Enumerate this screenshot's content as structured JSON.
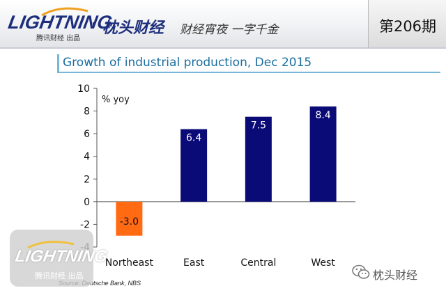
{
  "header": {
    "logo": "LIGHTNING",
    "logo_sub": "腾讯财经 出品",
    "separator": "·",
    "brand": "枕头财经",
    "slogan": "财经宵夜 一字千金",
    "issue": "第206期"
  },
  "colors": {
    "negative_bar": "#ff6a13",
    "positive_bar": "#0b0b78",
    "accent": "#7ab6d8",
    "title": "#1a6ea0"
  },
  "chart_data": {
    "type": "bar",
    "title": "Growth of industrial production, Dec 2015",
    "unit_label": "% yoy",
    "categories": [
      "Northeast",
      "East",
      "Central",
      "West"
    ],
    "values": [
      -3.0,
      6.4,
      7.5,
      8.4
    ],
    "value_labels": [
      "-3.0",
      "6.4",
      "7.5",
      "8.4"
    ],
    "ylim": [
      -4,
      10
    ],
    "yticks": [
      "10",
      "8",
      "6",
      "4",
      "2",
      "0",
      "-2",
      "-4"
    ],
    "source": "Source: Deutsche Bank, NBS"
  },
  "watermark": {
    "logo": "LIGHTNING",
    "sub": "腾讯财经 出品",
    "account": "枕头财经"
  }
}
